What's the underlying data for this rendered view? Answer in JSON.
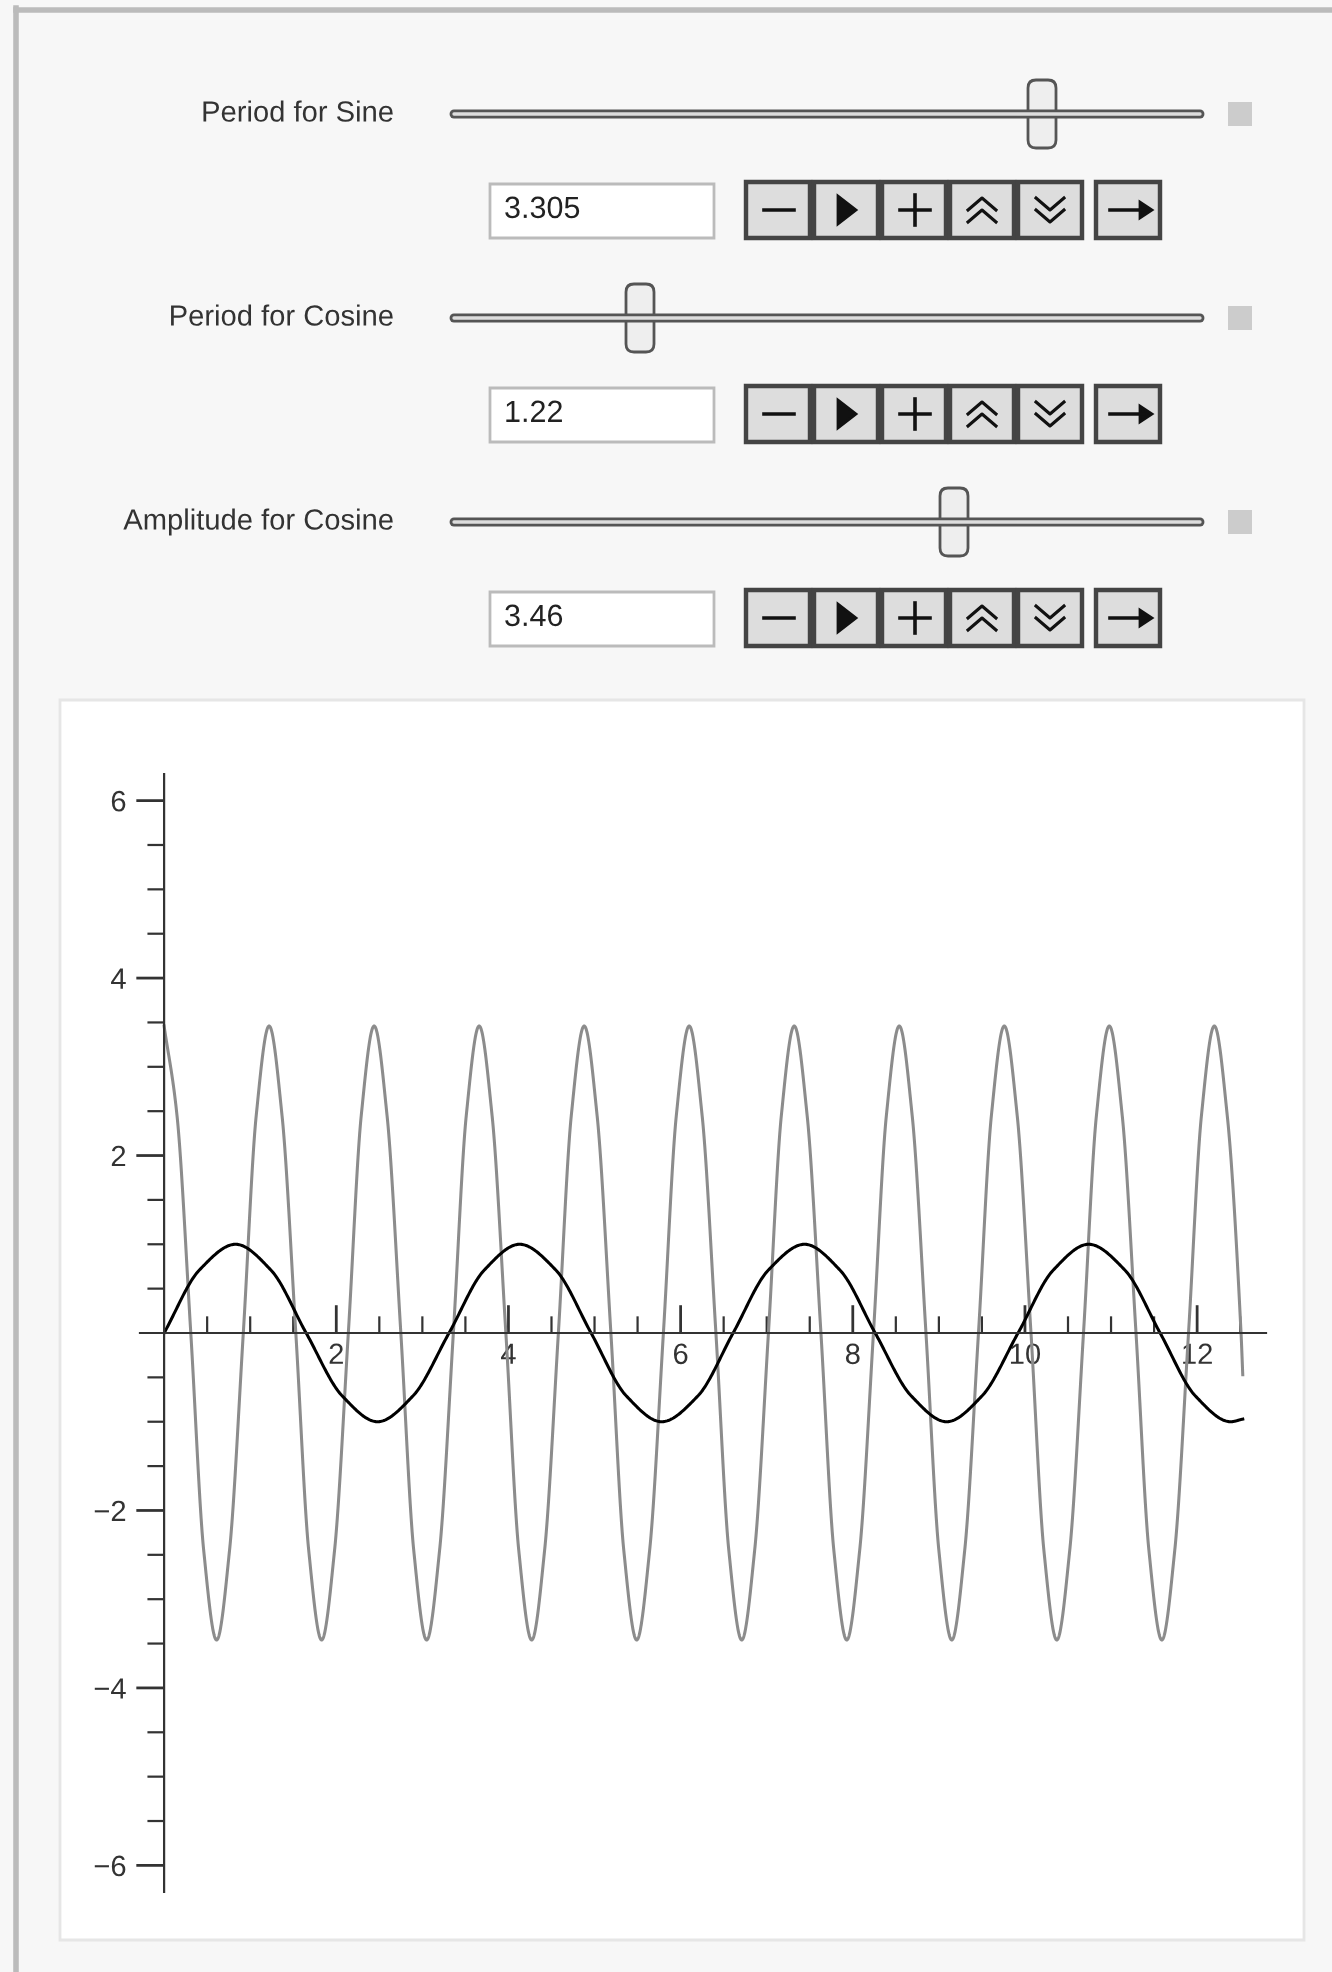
{
  "chart_data": [
    {
      "type": "other",
      "annotations": [
        "Period for Sine",
        "3.305",
        "Period for Cosine",
        "1.22",
        "Amplitude for Cosine",
        "3.46"
      ]
    },
    {
      "type": "line",
      "xlim": [
        -0.28,
        12.8
      ],
      "ylim": [
        -6.3,
        6.3
      ],
      "xticks": [
        2,
        4,
        6,
        8,
        10,
        12,
        {
          "value": 0.5,
          "label": null
        },
        {
          "value": 1,
          "label": null
        },
        {
          "value": 1.5,
          "label": null
        },
        {
          "value": 2.5,
          "label": null
        },
        {
          "value": 3,
          "label": null
        },
        {
          "value": 3.5,
          "label": null
        },
        {
          "value": 4.5,
          "label": null
        },
        {
          "value": 5,
          "label": null
        },
        {
          "value": 5.5,
          "label": null
        },
        {
          "value": 6.5,
          "label": null
        },
        {
          "value": 7,
          "label": null
        },
        {
          "value": 7.5,
          "label": null
        },
        {
          "value": 8.5,
          "label": null
        },
        {
          "value": 9,
          "label": null
        },
        {
          "value": 9.5,
          "label": null
        },
        {
          "value": 10.5,
          "label": null
        },
        {
          "value": 11,
          "label": null
        },
        {
          "value": 11.5,
          "label": null
        },
        {
          "value": 12.5,
          "label": null
        }
      ],
      "yticks": [
        -6,
        -4,
        -2,
        2,
        4,
        6,
        {
          "value": -5.5,
          "label": null
        },
        {
          "value": -5,
          "label": null
        },
        {
          "value": -4.5,
          "label": null
        },
        {
          "value": -3.5,
          "label": null
        },
        {
          "value": -3,
          "label": null
        },
        {
          "value": -2.5,
          "label": null
        },
        {
          "value": -1.5,
          "label": null
        },
        {
          "value": -1,
          "label": null
        },
        {
          "value": -0.5,
          "label": null
        },
        {
          "value": 0.5,
          "label": null
        },
        {
          "value": 1,
          "label": null
        },
        {
          "value": 1.5,
          "label": null
        },
        {
          "value": 2.5,
          "label": null
        },
        {
          "value": 3,
          "label": null
        },
        {
          "value": 3.5,
          "label": null
        },
        {
          "value": 4.5,
          "label": null
        },
        {
          "value": 5,
          "label": null
        },
        {
          "value": 5.5,
          "label": null
        }
      ],
      "series": [
        {
          "color": "#8c8c8c",
          "x": [
            0,
            0.15,
            0.31,
            0.46,
            0.61,
            0.76,
            0.92,
            1.07,
            1.22,
            1.37,
            1.53,
            1.68,
            1.83,
            1.98,
            2.14,
            2.29,
            2.44,
            2.59,
            2.75,
            2.9,
            3.05,
            3.2,
            3.36,
            3.51,
            3.66,
            3.81,
            3.97,
            4.12,
            4.27,
            4.42,
            4.58,
            4.73,
            4.88,
            5.03,
            5.19,
            5.34,
            5.49,
            5.64,
            5.8,
            5.95,
            6.1,
            6.25,
            6.41,
            6.56,
            6.71,
            6.86,
            7.02,
            7.17,
            7.32,
            7.47,
            7.63,
            7.78,
            7.93,
            8.08,
            8.24,
            8.39,
            8.54,
            8.69,
            8.85,
            9.0,
            9.15,
            9.3,
            9.46,
            9.61,
            9.76,
            9.91,
            10.07,
            10.22,
            10.37,
            10.52,
            10.68,
            10.83,
            10.98,
            11.13,
            11.29,
            11.44,
            11.59,
            11.74,
            11.9,
            12.05,
            12.2,
            12.35,
            12.51,
            12.53
          ],
          "values": [
            3.46,
            2.45,
            0,
            -2.45,
            -3.46,
            -2.45,
            0,
            2.45,
            3.46,
            2.45,
            0,
            -2.45,
            -3.46,
            -2.45,
            0,
            2.45,
            3.46,
            2.45,
            0,
            -2.45,
            -3.46,
            -2.45,
            0,
            2.45,
            3.46,
            2.45,
            0,
            -2.45,
            -3.46,
            -2.45,
            0,
            2.45,
            3.46,
            2.45,
            0,
            -2.45,
            -3.46,
            -2.45,
            0,
            2.45,
            3.46,
            2.45,
            0,
            -2.45,
            -3.46,
            -2.45,
            0,
            2.45,
            3.46,
            2.45,
            0,
            -2.45,
            -3.46,
            -2.45,
            0,
            2.45,
            3.46,
            2.45,
            0,
            -2.45,
            -3.46,
            -2.45,
            0,
            2.45,
            3.46,
            2.45,
            0,
            -2.45,
            -3.46,
            -2.45,
            0,
            2.45,
            3.46,
            2.45,
            0,
            -2.45,
            -3.46,
            -2.45,
            0,
            2.45,
            3.46,
            2.45,
            0,
            -0.47
          ]
        },
        {
          "color": "#000000",
          "x": [
            0,
            0.41,
            0.83,
            1.24,
            1.65,
            2.07,
            2.48,
            2.89,
            3.31,
            3.72,
            4.13,
            4.55,
            4.96,
            5.37,
            5.78,
            6.2,
            6.61,
            7.02,
            7.44,
            7.85,
            8.26,
            8.68,
            9.09,
            9.5,
            9.92,
            10.33,
            10.74,
            11.16,
            11.57,
            11.98,
            12.39,
            12.53
          ],
          "values": [
            0,
            0.71,
            1,
            0.71,
            0,
            -0.71,
            -1,
            -0.71,
            0,
            0.71,
            1,
            0.71,
            0,
            -0.71,
            -1,
            -0.71,
            0,
            0.71,
            1,
            0.71,
            0,
            -0.71,
            -1,
            -0.71,
            0,
            0.71,
            1,
            0.71,
            0,
            -0.71,
            -1,
            -0.97
          ]
        }
      ]
    }
  ]
}
